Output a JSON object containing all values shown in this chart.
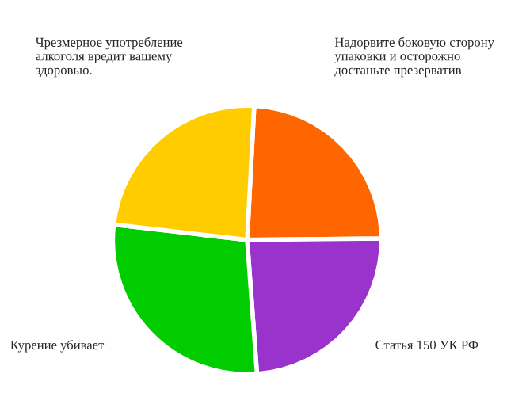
{
  "chart_data": {
    "type": "pie",
    "categories": [
      "Надорвите боковую сторону упаковки и осторожно достаньте презерватив",
      "Статья 150 УК РФ",
      "Курение убивает",
      "Чрезмерное употребление алкоголя вредит вашему здоровью."
    ],
    "values": [
      24,
      24,
      28,
      24
    ],
    "colors": [
      "#ff6600",
      "#9933cc",
      "#00cc00",
      "#ffcc00"
    ]
  }
}
